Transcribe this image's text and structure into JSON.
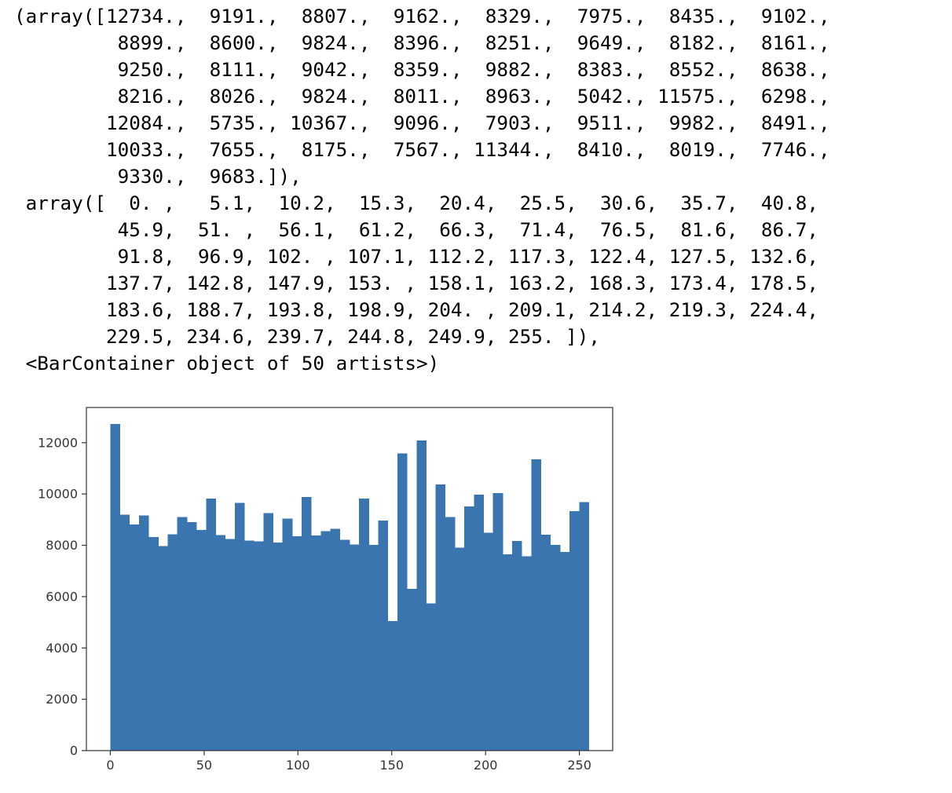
{
  "output": {
    "lines": [
      "(array([12734.,  9191.,  8807.,  9162.,  8329.,  7975.,  8435.,  9102.,",
      "         8899.,  8600.,  9824.,  8396.,  8251.,  9649.,  8182.,  8161.,",
      "         9250.,  8111.,  9042.,  8359.,  9882.,  8383.,  8552.,  8638.,",
      "         8216.,  8026.,  9824.,  8011.,  8963.,  5042., 11575.,  6298.,",
      "        12084.,  5735., 10367.,  9096.,  7903.,  9511.,  9982.,  8491.,",
      "        10033.,  7655.,  8175.,  7567., 11344.,  8410.,  8019.,  7746.,",
      "         9330.,  9683.]),",
      " array([  0. ,   5.1,  10.2,  15.3,  20.4,  25.5,  30.6,  35.7,  40.8,",
      "         45.9,  51. ,  56.1,  61.2,  66.3,  71.4,  76.5,  81.6,  86.7,",
      "         91.8,  96.9, 102. , 107.1, 112.2, 117.3, 122.4, 127.5, 132.6,",
      "        137.7, 142.8, 147.9, 153. , 158.1, 163.2, 168.3, 173.4, 178.5,",
      "        183.6, 188.7, 193.8, 198.9, 204. , 209.1, 214.2, 219.3, 224.4,",
      "        229.5, 234.6, 239.7, 244.8, 249.9, 255. ]),",
      " <BarContainer object of 50 artists>)"
    ]
  },
  "chart_data": {
    "type": "bar",
    "title": "",
    "xlabel": "",
    "ylabel": "",
    "bin_edges": [
      0,
      5.1,
      10.2,
      15.3,
      20.4,
      25.5,
      30.6,
      35.7,
      40.8,
      45.9,
      51,
      56.1,
      61.2,
      66.3,
      71.4,
      76.5,
      81.6,
      86.7,
      91.8,
      96.9,
      102,
      107.1,
      112.2,
      117.3,
      122.4,
      127.5,
      132.6,
      137.7,
      142.8,
      147.9,
      153,
      158.1,
      163.2,
      168.3,
      173.4,
      178.5,
      183.6,
      188.7,
      193.8,
      198.9,
      204,
      209.1,
      214.2,
      219.3,
      224.4,
      229.5,
      234.6,
      239.7,
      244.8,
      249.9,
      255
    ],
    "values": [
      12734,
      9191,
      8807,
      9162,
      8329,
      7975,
      8435,
      9102,
      8899,
      8600,
      9824,
      8396,
      8251,
      9649,
      8182,
      8161,
      9250,
      8111,
      9042,
      8359,
      9882,
      8383,
      8552,
      8638,
      8216,
      8026,
      9824,
      8011,
      8963,
      5042,
      11575,
      6298,
      12084,
      5735,
      10367,
      9096,
      7903,
      9511,
      9982,
      8491,
      10033,
      7655,
      8175,
      7567,
      11344,
      8410,
      8019,
      7746,
      9330,
      9683
    ],
    "xlim": [
      -12.75,
      267.75
    ],
    "ylim": [
      0,
      13370.7
    ],
    "xticks": [
      0,
      50,
      100,
      150,
      200,
      250
    ],
    "yticks": [
      0,
      2000,
      4000,
      6000,
      8000,
      10000,
      12000
    ],
    "grid": false,
    "legend": "none",
    "bar_color": "#3b75af"
  }
}
